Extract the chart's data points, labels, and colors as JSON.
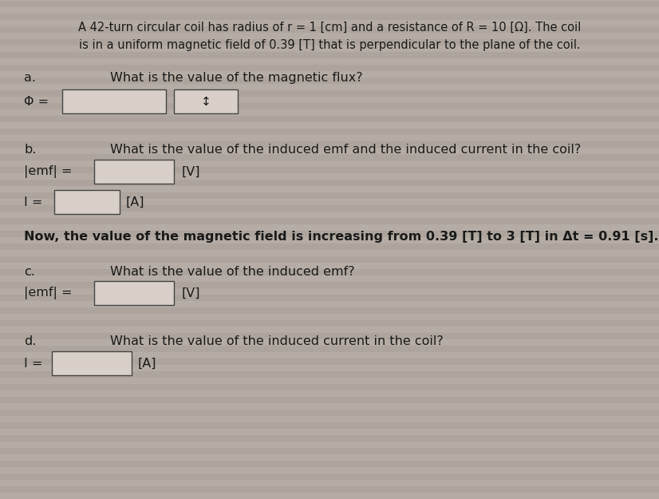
{
  "bg_color": "#b8b0a8",
  "stripe_color1": "#bab2aa",
  "stripe_color2": "#a8a098",
  "title_line1": "A 42-turn circular coil has radius of r = 1 [cm] and a resistance of R = 10 [Ω]. The coil",
  "title_line2": "is in a uniform magnetic field of 0.39 [T] that is perpendicular to the plane of the coil.",
  "part_a_label": "a.",
  "part_a_question": "What is the value of the magnetic flux?",
  "phi_label": "Φ =",
  "part_b_label": "b.",
  "part_b_question": "What is the value of the induced emf and the induced current in the coil?",
  "emf_label_b": "|emf| =",
  "emf_unit_b": "[V]",
  "current_label_b": "I =",
  "current_unit_b": "[A]",
  "bold_text": "Now, the value of the magnetic field is increasing from 0.39 [T] to 3 [T] in Δt = 0.91 [s].",
  "part_c_label": "c.",
  "part_c_question": "What is the value of the induced emf?",
  "emf_label_c": "|emf| =",
  "emf_unit_c": "[V]",
  "part_d_label": "d.",
  "part_d_question": "What is the value of the induced current in the coil?",
  "current_label_d": "I =",
  "current_unit_d": "[A]",
  "text_color": "#1a1a1a",
  "box_fill": "#d8d0c8",
  "box_edge": "#444444",
  "title_fontsize": 10.5,
  "body_fontsize": 11.5
}
